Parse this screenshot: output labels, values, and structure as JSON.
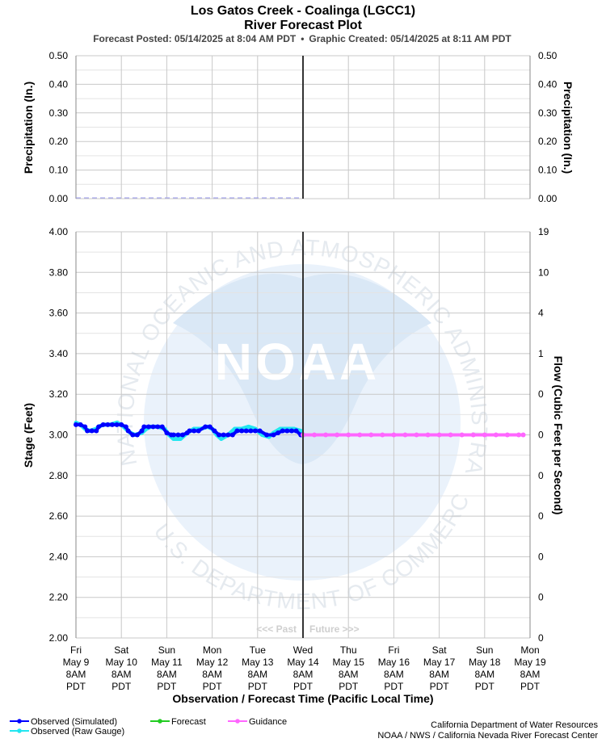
{
  "header": {
    "title": "Los Gatos Creek - Coalinga (LGCC1)",
    "subtitle": "River Forecast Plot",
    "posted": "Forecast Posted: 05/14/2025 at 8:04 AM PDT",
    "bullet": "•",
    "created": "Graphic Created: 05/14/2025 at 8:11 AM PDT"
  },
  "watermark": {
    "logo_text": "NOAA",
    "ring_top": "NATIONAL OCEANIC AND ATMOSPHERIC ADMINISTRATION",
    "ring_bottom": "U.S. DEPARTMENT OF COMMERCE"
  },
  "precip": {
    "ylabel_left": "Precipitation (In.)",
    "ylabel_right": "Precipitation (In.)",
    "ticks": [
      "0.00",
      "0.10",
      "0.20",
      "0.30",
      "0.40",
      "0.50"
    ]
  },
  "stage": {
    "ylabel_left": "Stage (Feet)",
    "ylabel_right": "Flow (Cubic Feet per Second)",
    "ticks_left": [
      "2.00",
      "2.20",
      "2.40",
      "2.60",
      "2.80",
      "3.00",
      "3.20",
      "3.40",
      "3.60",
      "3.80",
      "4.00"
    ],
    "ticks_right": [
      "0",
      "0",
      "0",
      "0",
      "0",
      "0",
      "0",
      "1",
      "4",
      "10",
      "19"
    ],
    "past_label": "<<< Past",
    "future_label": "Future >>>"
  },
  "xaxis": {
    "title": "Observation / Forecast Time (Pacific Local Time)",
    "ticks": [
      {
        "day": "Fri",
        "date": "May 9",
        "time": "8AM",
        "tz": "PDT"
      },
      {
        "day": "Sat",
        "date": "May 10",
        "time": "8AM",
        "tz": "PDT"
      },
      {
        "day": "Sun",
        "date": "May 11",
        "time": "8AM",
        "tz": "PDT"
      },
      {
        "day": "Mon",
        "date": "May 12",
        "time": "8AM",
        "tz": "PDT"
      },
      {
        "day": "Tue",
        "date": "May 13",
        "time": "8AM",
        "tz": "PDT"
      },
      {
        "day": "Wed",
        "date": "May 14",
        "time": "8AM",
        "tz": "PDT"
      },
      {
        "day": "Thu",
        "date": "May 15",
        "time": "8AM",
        "tz": "PDT"
      },
      {
        "day": "Fri",
        "date": "May 16",
        "time": "8AM",
        "tz": "PDT"
      },
      {
        "day": "Sat",
        "date": "May 17",
        "time": "8AM",
        "tz": "PDT"
      },
      {
        "day": "Sun",
        "date": "May 18",
        "time": "8AM",
        "tz": "PDT"
      },
      {
        "day": "Mon",
        "date": "May 19",
        "time": "8AM",
        "tz": "PDT"
      }
    ]
  },
  "legend": {
    "items": [
      {
        "label": "Observed (Simulated)",
        "color": "#0000ff"
      },
      {
        "label": "Observed (Raw Gauge)",
        "color": "#22e6f0"
      },
      {
        "label": "Forecast",
        "color": "#22cc22"
      },
      {
        "label": "Guidance",
        "color": "#ff66ff"
      }
    ]
  },
  "credits": {
    "line1": "California Department of Water Resources",
    "line2": "NOAA / NWS / California Nevada River Forecast Center"
  },
  "chart_data": [
    {
      "type": "bar",
      "title": "",
      "ylabel": "Precipitation (In.)",
      "ylim": [
        0,
        0.5
      ],
      "x": [
        "05/09 8AM",
        "05/10 8AM",
        "05/11 8AM",
        "05/12 8AM",
        "05/13 8AM",
        "05/14 8AM"
      ],
      "values": [
        0,
        0,
        0,
        0,
        0,
        0
      ],
      "grid": true
    },
    {
      "type": "line",
      "title": "",
      "xlabel": "Observation / Forecast Time (Pacific Local Time)",
      "ylabel": "Stage (Feet)",
      "ylabel_right": "Flow (Cubic Feet per Second)",
      "ylim": [
        2.0,
        4.0
      ],
      "xlim": [
        "05/09 8AM",
        "05/19 8AM"
      ],
      "x_units": "days after 05/09 8AM",
      "now": "05/14 8AM",
      "grid": true,
      "series": [
        {
          "name": "Observed (Simulated)",
          "color": "#0000ff",
          "x": [
            0.0,
            0.1,
            0.2,
            0.25,
            0.35,
            0.45,
            0.5,
            0.6,
            0.7,
            0.8,
            0.9,
            1.0,
            1.1,
            1.15,
            1.25,
            1.35,
            1.45,
            1.5,
            1.6,
            1.7,
            1.8,
            1.9,
            2.0,
            2.1,
            2.15,
            2.25,
            2.35,
            2.45,
            2.5,
            2.6,
            2.7,
            2.85,
            2.95,
            3.05,
            3.15,
            3.25,
            3.35,
            3.45,
            3.55,
            3.65,
            3.75,
            3.85,
            3.95,
            4.05,
            4.2,
            4.35,
            4.45,
            4.55,
            4.65,
            4.75,
            4.85,
            4.95,
            5.0
          ],
          "values": [
            3.05,
            3.05,
            3.04,
            3.02,
            3.02,
            3.02,
            3.04,
            3.05,
            3.05,
            3.05,
            3.05,
            3.05,
            3.04,
            3.02,
            3.0,
            3.0,
            3.02,
            3.04,
            3.04,
            3.04,
            3.04,
            3.04,
            3.01,
            3.0,
            3.0,
            3.0,
            3.0,
            3.01,
            3.02,
            3.02,
            3.02,
            3.04,
            3.04,
            3.02,
            3.0,
            3.0,
            3.0,
            3.0,
            3.02,
            3.02,
            3.02,
            3.02,
            3.02,
            3.02,
            3.0,
            3.0,
            3.01,
            3.02,
            3.02,
            3.02,
            3.02,
            3.0,
            3.0
          ]
        },
        {
          "name": "Observed (Raw Gauge)",
          "color": "#22e6f0",
          "x": [
            0.0,
            0.1,
            0.2,
            0.3,
            0.45,
            0.5,
            0.6,
            0.75,
            0.9,
            1.0,
            1.1,
            1.2,
            1.3,
            1.45,
            1.55,
            1.65,
            1.8,
            1.95,
            2.05,
            2.15,
            2.3,
            2.45,
            2.6,
            2.75,
            2.9,
            3.0,
            3.1,
            3.2,
            3.35,
            3.5,
            3.65,
            3.8,
            3.95,
            4.1,
            4.25,
            4.35,
            4.5,
            4.65,
            4.8,
            4.95,
            5.0
          ],
          "values": [
            3.06,
            3.05,
            3.03,
            3.02,
            3.03,
            3.04,
            3.05,
            3.05,
            3.06,
            3.05,
            3.03,
            3.01,
            3.0,
            3.01,
            3.03,
            3.04,
            3.04,
            3.03,
            3.0,
            2.98,
            2.98,
            3.01,
            3.03,
            3.03,
            3.04,
            3.03,
            3.0,
            2.98,
            3.0,
            3.03,
            3.03,
            3.04,
            3.03,
            3.0,
            2.99,
            3.01,
            3.03,
            3.03,
            3.03,
            3.02,
            3.0
          ]
        },
        {
          "name": "Guidance",
          "color": "#ff66ff",
          "x": [
            5.0,
            5.25,
            5.5,
            5.75,
            6.0,
            6.25,
            6.5,
            6.75,
            7.0,
            7.25,
            7.5,
            7.75,
            8.0,
            8.25,
            8.5,
            8.75,
            9.0,
            9.25,
            9.5,
            9.75,
            9.85
          ],
          "values": [
            3.0,
            3.0,
            3.0,
            3.0,
            3.0,
            3.0,
            3.0,
            3.0,
            3.0,
            3.0,
            3.0,
            3.0,
            3.0,
            3.0,
            3.0,
            3.0,
            3.0,
            3.0,
            3.0,
            3.0,
            3.0
          ]
        }
      ]
    }
  ]
}
